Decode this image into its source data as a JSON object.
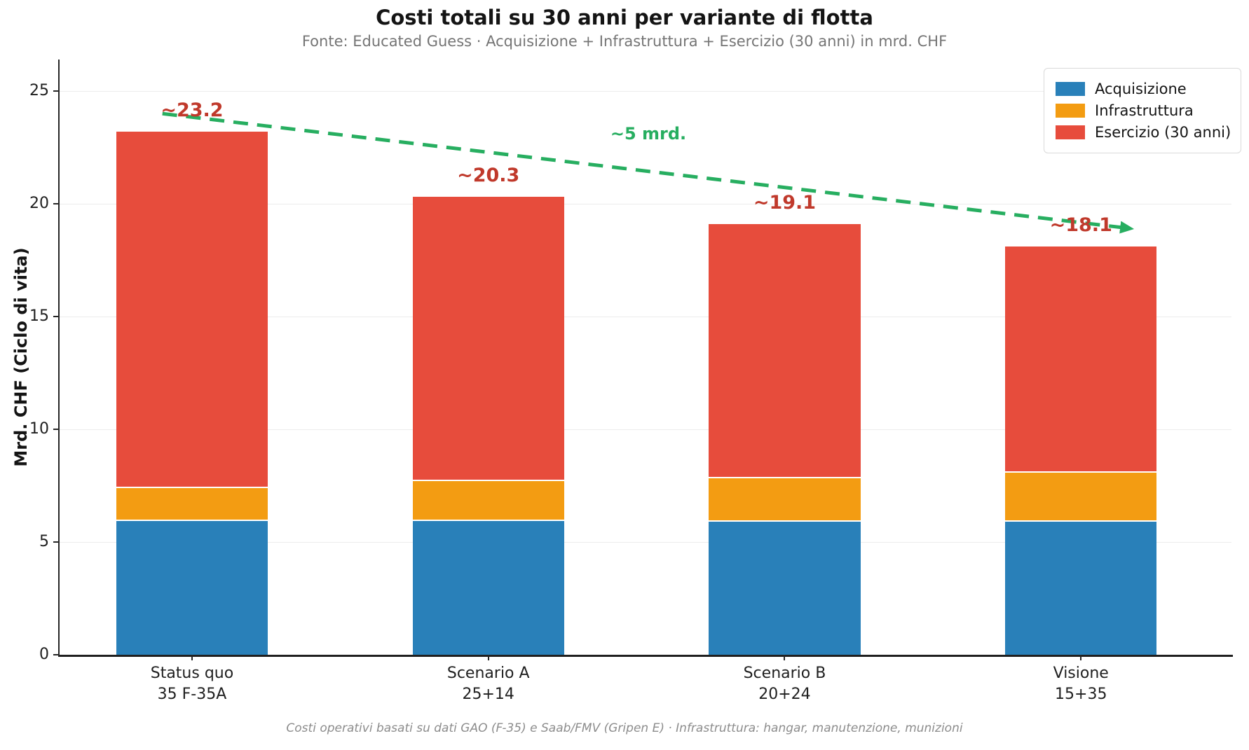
{
  "title": "Costi totali su 30 anni per variante di flotta",
  "subtitle": "Fonte: Educated Guess · Acquisizione + Infrastruttura + Esercizio (30 anni) in mrd. CHF",
  "footer": "Costi operativi basati su dati GAO (F-35) e Saab/FMV (Gripen E) · Infrastruttura: hangar, manutenzione, munizioni",
  "ylabel": "Mrd. CHF (Ciclo di vita)",
  "colors": {
    "acquisizione": "#2980b9",
    "infrastruttura": "#f39c12",
    "esercizio": "#e74c3c",
    "trend_green": "#27ae60",
    "total_label_red": "#c0392b",
    "grid": "#ececec",
    "axis": "#262626"
  },
  "chart_data": {
    "type": "bar",
    "stacked": true,
    "grid": true,
    "legend_position": "upper right",
    "categories": [
      {
        "label": "Status quo",
        "sublabel": "35 F-35A"
      },
      {
        "label": "Scenario A",
        "sublabel": "25+14"
      },
      {
        "label": "Scenario B",
        "sublabel": "20+24"
      },
      {
        "label": "Visione",
        "sublabel": "15+35"
      }
    ],
    "series": [
      {
        "name": "Acquisizione",
        "color": "#2980b9",
        "values": [
          6.0,
          6.0,
          5.95,
          5.95
        ]
      },
      {
        "name": "Infrastruttura",
        "color": "#f39c12",
        "values": [
          1.45,
          1.75,
          1.95,
          2.2
        ]
      },
      {
        "name": "Esercizio (30 anni)",
        "color": "#e74c3c",
        "values": [
          15.75,
          12.55,
          11.2,
          9.95
        ]
      }
    ],
    "totals": [
      23.2,
      20.3,
      19.1,
      18.1
    ],
    "total_labels": [
      "~23.2",
      "~20.3",
      "~19.1",
      "~18.1"
    ],
    "total_label_color": "#c0392b",
    "yticks": [
      0,
      5,
      10,
      15,
      20,
      25
    ],
    "ylim": [
      0,
      26.4
    ],
    "annotation": {
      "label": "~5 mrd.",
      "color": "#27ae60",
      "label_pos": {
        "x": 1.54,
        "y": 23.1
      },
      "arrow": {
        "from": {
          "x": -0.1,
          "y": 24.0
        },
        "to": {
          "x": 3.17,
          "y": 18.9
        }
      }
    }
  }
}
